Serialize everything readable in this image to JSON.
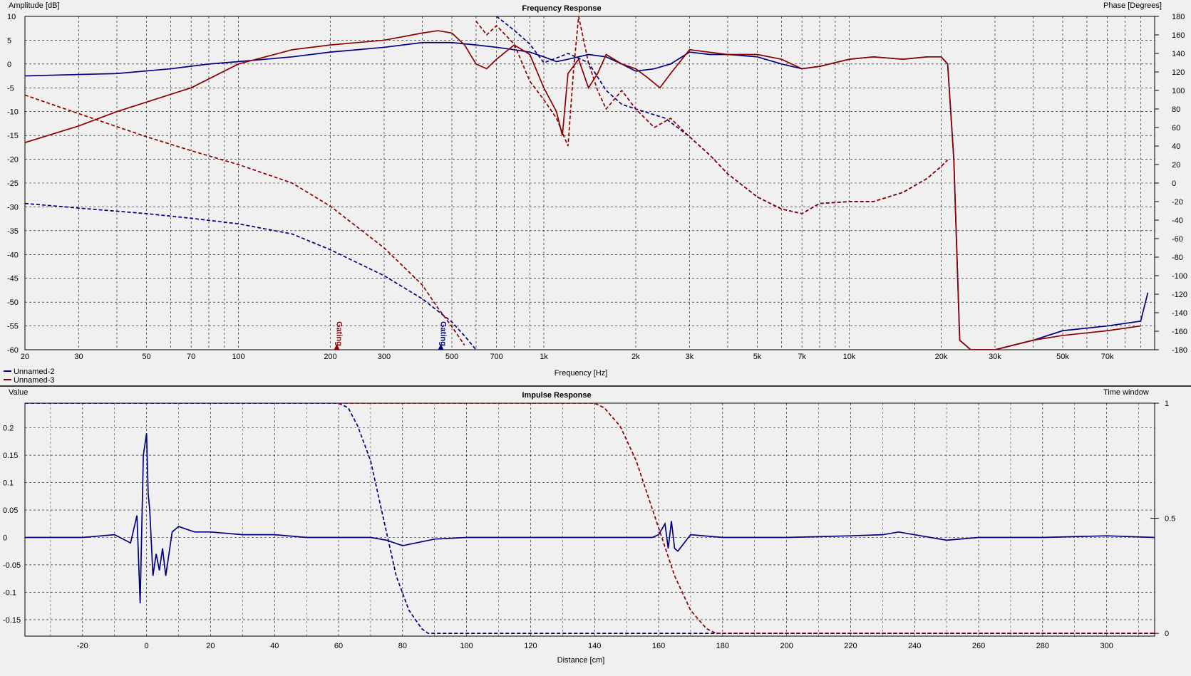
{
  "top": {
    "title": "Frequency Response",
    "left_axis_label": "Amplitude [dB]",
    "right_axis_label": "Phase [Degrees]",
    "x_axis_label": "Frequency [Hz]",
    "legend": [
      {
        "name": "Unnamed-2",
        "color": "#000080"
      },
      {
        "name": "Unnamed-3",
        "color": "#8b0000"
      }
    ],
    "gating_label": "Gating"
  },
  "bottom": {
    "title": "Impulse Response",
    "left_axis_label": "Value",
    "right_axis_label": "Time window",
    "x_axis_label": "Distance [cm]"
  },
  "chart_data": [
    {
      "type": "line",
      "title": "Frequency Response",
      "xlabel": "Frequency [Hz]",
      "ylabel": "Amplitude [dB]",
      "y2label": "Phase [Degrees]",
      "xscale": "log",
      "xlim": [
        20,
        100000
      ],
      "ylim": [
        -60,
        10
      ],
      "y2lim": [
        -180,
        180
      ],
      "x_ticks": [
        {
          "v": 20,
          "label": "20"
        },
        {
          "v": 30,
          "label": "30"
        },
        {
          "v": 50,
          "label": "50"
        },
        {
          "v": 70,
          "label": "70"
        },
        {
          "v": 100,
          "label": "100"
        },
        {
          "v": 200,
          "label": "200"
        },
        {
          "v": 300,
          "label": "300"
        },
        {
          "v": 500,
          "label": "500"
        },
        {
          "v": 700,
          "label": "700"
        },
        {
          "v": 1000,
          "label": "1k"
        },
        {
          "v": 2000,
          "label": "2k"
        },
        {
          "v": 3000,
          "label": "3k"
        },
        {
          "v": 5000,
          "label": "5k"
        },
        {
          "v": 7000,
          "label": "7k"
        },
        {
          "v": 10000,
          "label": "10k"
        },
        {
          "v": 20000,
          "label": "20k"
        },
        {
          "v": 30000,
          "label": "30k"
        },
        {
          "v": 50000,
          "label": "50k"
        },
        {
          "v": 70000,
          "label": "70k"
        }
      ],
      "y_ticks": [
        10,
        5,
        0,
        -5,
        -10,
        -15,
        -20,
        -25,
        -30,
        -35,
        -40,
        -45,
        -50,
        -55,
        -60
      ],
      "y2_ticks": [
        180,
        160,
        140,
        120,
        100,
        80,
        60,
        40,
        20,
        0,
        -20,
        -40,
        -60,
        -80,
        -100,
        -120,
        -140,
        -160,
        -180
      ],
      "grid": true,
      "legend_position": "bottom-left",
      "gating_markers": [
        {
          "x": 210,
          "color": "#8b0000",
          "label": "Gating"
        },
        {
          "x": 460,
          "color": "#000080",
          "label": "Gating"
        }
      ],
      "series": [
        {
          "name": "Unnamed-2",
          "kind": "amplitude",
          "color": "#000080",
          "dash": false,
          "x": [
            20,
            40,
            60,
            80,
            100,
            150,
            200,
            300,
            400,
            500,
            600,
            700,
            800,
            900,
            1000,
            1100,
            1200,
            1400,
            1600,
            1800,
            2000,
            2300,
            2600,
            3000,
            3500,
            4000,
            5000,
            6000,
            7000,
            8000,
            10000,
            12000,
            15000,
            18000,
            20000,
            21000,
            22000,
            23000,
            25000,
            30000,
            40000,
            50000,
            70000,
            90000,
            95000
          ],
          "y": [
            -2.5,
            -2,
            -1,
            0,
            0.5,
            1.5,
            2.5,
            3.5,
            4.5,
            4.5,
            4,
            3.5,
            3,
            2.5,
            1.5,
            0.5,
            1,
            2,
            1.5,
            0,
            -1.5,
            -1,
            0,
            2.5,
            2,
            2,
            1.5,
            0,
            -1,
            -0.5,
            1,
            1.5,
            1,
            1.5,
            1.5,
            0,
            -20,
            -58,
            -60,
            -60,
            -58,
            -56,
            -55,
            -54,
            -48
          ]
        },
        {
          "name": "Unnamed-3",
          "kind": "amplitude",
          "color": "#8b0000",
          "dash": false,
          "x": [
            20,
            30,
            40,
            50,
            70,
            100,
            150,
            200,
            300,
            400,
            450,
            500,
            550,
            600,
            650,
            700,
            800,
            900,
            1000,
            1100,
            1150,
            1200,
            1300,
            1400,
            1500,
            1600,
            1800,
            2000,
            2200,
            2400,
            2600,
            3000,
            4000,
            5000,
            6000,
            7000,
            8000,
            10000,
            12000,
            15000,
            18000,
            20000,
            21000,
            22000,
            23000,
            25000,
            30000,
            40000,
            50000,
            70000,
            90000
          ],
          "y": [
            -16.5,
            -13,
            -10,
            -8,
            -5,
            0,
            3,
            4,
            5,
            6.5,
            7,
            6.5,
            4,
            0,
            -1,
            1,
            4,
            2,
            -5,
            -10,
            -15,
            -2,
            1,
            -5,
            -2,
            2,
            0,
            -1,
            -3,
            -5,
            -2,
            3,
            2,
            2,
            1,
            -1,
            -0.5,
            1,
            1.5,
            1,
            1.5,
            1.5,
            0,
            -20,
            -58,
            -60,
            -60,
            -58,
            -57,
            -56,
            -55
          ]
        },
        {
          "name": "Unnamed-2",
          "kind": "phase",
          "color": "#000080",
          "dash": true,
          "x": [
            20,
            30,
            50,
            70,
            100,
            150,
            200,
            300,
            400,
            500,
            550,
            600,
            700,
            800,
            900,
            1000,
            1100,
            1200,
            1400,
            1600,
            1800,
            2000,
            2500,
            3000,
            3500,
            4000,
            5000,
            6000,
            7000,
            8000,
            10000,
            12000,
            15000,
            18000,
            20000,
            21000
          ],
          "y": [
            -22,
            -27,
            -33,
            -38,
            -44,
            -55,
            -72,
            -100,
            -125,
            -150,
            -165,
            -180,
            180,
            165,
            150,
            130,
            135,
            140,
            130,
            100,
            85,
            80,
            70,
            50,
            30,
            10,
            -15,
            -28,
            -33,
            -22,
            -20,
            -20,
            -10,
            5,
            18,
            25
          ]
        },
        {
          "name": "Unnamed-3",
          "kind": "phase",
          "color": "#8b0000",
          "dash": true,
          "x": [
            20,
            30,
            50,
            70,
            100,
            150,
            200,
            300,
            400,
            450,
            500,
            550,
            600,
            650,
            700,
            800,
            900,
            1000,
            1100,
            1200,
            1250,
            1300,
            1400,
            1500,
            1600,
            1800,
            2000,
            2300,
            2600,
            3000,
            3500,
            4000,
            5000,
            6000,
            7000,
            8000,
            10000,
            12000,
            15000,
            18000,
            20000,
            21000
          ],
          "y": [
            95,
            75,
            50,
            35,
            20,
            0,
            -25,
            -70,
            -110,
            -135,
            -155,
            -175,
            175,
            160,
            170,
            150,
            110,
            90,
            70,
            40,
            120,
            180,
            130,
            100,
            80,
            100,
            80,
            60,
            70,
            50,
            30,
            10,
            -15,
            -28,
            -33,
            -22,
            -20,
            -20,
            -10,
            5,
            18,
            25
          ]
        }
      ]
    },
    {
      "type": "line",
      "title": "Impulse Response",
      "xlabel": "Distance [cm]",
      "ylabel": "Value",
      "y2label": "Time window",
      "xlim": [
        -38,
        315
      ],
      "ylim": [
        -0.18,
        0.245
      ],
      "y2lim": [
        0,
        1
      ],
      "x_ticks": [
        -20,
        0,
        20,
        40,
        60,
        80,
        100,
        120,
        140,
        160,
        180,
        200,
        220,
        240,
        260,
        280,
        300
      ],
      "y_ticks": [
        {
          "v": 0.2,
          "label": "0.2"
        },
        {
          "v": 0.15,
          "label": "0.15"
        },
        {
          "v": 0.1,
          "label": "0.1"
        },
        {
          "v": 0.05,
          "label": "0.05"
        },
        {
          "v": 0,
          "label": "0"
        },
        {
          "v": -0.05,
          "label": "-0.05"
        },
        {
          "v": -0.1,
          "label": "-0.1"
        },
        {
          "v": -0.15,
          "label": "-0.15"
        }
      ],
      "y2_ticks": [
        {
          "v": 1,
          "label": "1"
        },
        {
          "v": 0.5,
          "label": "0.5"
        },
        {
          "v": 0,
          "label": "0"
        }
      ],
      "grid": true,
      "series": [
        {
          "name": "Unnamed-2",
          "kind": "impulse",
          "color": "#000080",
          "dash": false,
          "x": [
            -38,
            -20,
            -10,
            -5,
            -3,
            -2,
            -1,
            0,
            0.5,
            1,
            2,
            3,
            4,
            5,
            6,
            8,
            10,
            15,
            20,
            30,
            40,
            50,
            60,
            70,
            75,
            80,
            90,
            100,
            120,
            140,
            150,
            158,
            160,
            162,
            163,
            164,
            165,
            166,
            170,
            180,
            200,
            220,
            230,
            235,
            240,
            250,
            260,
            280,
            300,
            315
          ],
          "y": [
            0,
            0,
            0.005,
            -0.01,
            0.04,
            -0.12,
            0.15,
            0.19,
            0.08,
            0.05,
            -0.07,
            -0.03,
            -0.06,
            -0.02,
            -0.07,
            0.01,
            0.02,
            0.01,
            0.01,
            0.005,
            0.005,
            0,
            0,
            0,
            -0.005,
            -0.015,
            -0.003,
            0,
            0,
            0,
            0,
            0,
            0.005,
            0.025,
            -0.02,
            0.03,
            -0.02,
            -0.025,
            0.005,
            0,
            0,
            0.003,
            0.005,
            0.01,
            0.005,
            -0.005,
            0,
            0,
            0.003,
            0
          ]
        },
        {
          "name": "Unnamed-2",
          "kind": "window",
          "color": "#000080",
          "dash": true,
          "x": [
            -38,
            60,
            63,
            66,
            70,
            74,
            78,
            82,
            86,
            88,
            315
          ],
          "y": [
            1,
            1,
            0.98,
            0.9,
            0.75,
            0.5,
            0.25,
            0.1,
            0.02,
            0,
            0
          ]
        },
        {
          "name": "Unnamed-3",
          "kind": "window",
          "color": "#8b0000",
          "dash": true,
          "x": [
            60,
            140,
            143,
            148,
            153,
            159,
            165,
            170,
            175,
            178,
            180,
            315
          ],
          "y": [
            1,
            1,
            0.98,
            0.9,
            0.75,
            0.5,
            0.25,
            0.1,
            0.02,
            0,
            0,
            0
          ]
        }
      ]
    }
  ]
}
